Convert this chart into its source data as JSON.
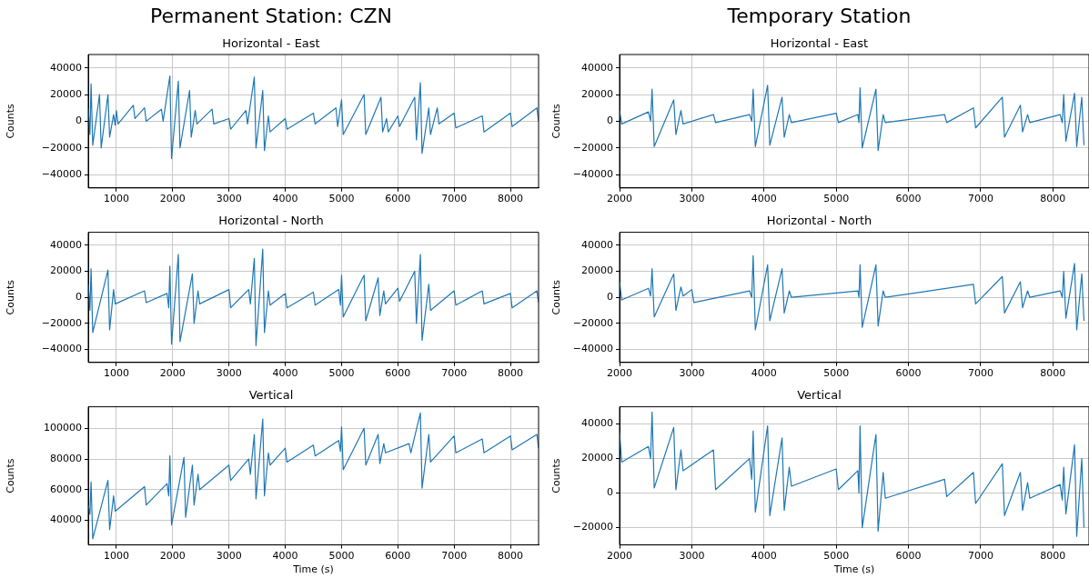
{
  "chart_data": [
    {
      "type": "line",
      "title": "Permanent Station: CZN",
      "subtitle": "Horizontal - East",
      "ylabel": "Counts",
      "xlim": [
        500,
        8500
      ],
      "xticks": [
        1000,
        2000,
        3000,
        4000,
        5000,
        6000,
        7000,
        8000
      ],
      "ylim": [
        -50000,
        50000
      ],
      "yticks": [
        -40000,
        -20000,
        0,
        20000,
        40000
      ],
      "grid": true,
      "series": [
        {
          "color": "#1f77b4",
          "x": [
            500,
            530,
            550,
            580,
            700,
            730,
            850,
            880,
            950,
            980,
            1000,
            1030,
            1300,
            1330,
            1500,
            1530,
            1800,
            1830,
            1950,
            1980,
            2100,
            2130,
            2300,
            2330,
            2400,
            2430,
            2700,
            2730,
            3000,
            3030,
            3300,
            3330,
            3450,
            3480,
            3600,
            3630,
            3700,
            3730,
            4000,
            4030,
            4500,
            4530,
            4900,
            4930,
            5000,
            5030,
            5400,
            5430,
            5700,
            5730,
            5800,
            5830,
            6000,
            6030,
            6300,
            6330,
            6400,
            6430,
            6550,
            6580,
            6700,
            6730,
            7000,
            7030,
            7500,
            7530,
            8000,
            8030,
            8470,
            8500
          ],
          "values": [
            10000,
            -10000,
            28000,
            -18000,
            20000,
            -20000,
            20000,
            -12000,
            5000,
            -3000,
            8000,
            -2000,
            12000,
            2000,
            10000,
            0,
            9000,
            0,
            34000,
            -28000,
            30000,
            -20000,
            23000,
            -12000,
            8000,
            -2000,
            9000,
            -2000,
            2000,
            -6000,
            8000,
            -2000,
            33000,
            -20000,
            23000,
            -22000,
            4000,
            -8000,
            2000,
            -6000,
            6000,
            -2000,
            10000,
            -4000,
            16000,
            -10000,
            20000,
            -10000,
            18000,
            -8000,
            2000,
            -8000,
            4000,
            -4000,
            18000,
            -14000,
            29000,
            -24000,
            10000,
            -10000,
            10000,
            -2000,
            6000,
            -5000,
            4000,
            -8000,
            6000,
            -4000,
            10000,
            0
          ]
        }
      ]
    },
    {
      "type": "line",
      "title": "Temporary Station",
      "subtitle": "Horizontal - East",
      "ylabel": "Counts",
      "xlim": [
        2000,
        8500
      ],
      "xticks": [
        2000,
        3000,
        4000,
        5000,
        6000,
        7000,
        8000
      ],
      "ylim": [
        -50000,
        50000
      ],
      "yticks": [
        -40000,
        -20000,
        0,
        20000,
        40000
      ],
      "grid": true,
      "series": [
        {
          "color": "#1f77b4",
          "x": [
            2000,
            2030,
            2400,
            2430,
            2450,
            2480,
            2750,
            2780,
            2850,
            2880,
            3300,
            3330,
            3800,
            3830,
            3850,
            3880,
            4050,
            4080,
            4250,
            4280,
            4350,
            4380,
            5000,
            5030,
            5300,
            5315,
            5330,
            5360,
            5550,
            5580,
            5650,
            5680,
            6500,
            6530,
            6900,
            6930,
            7300,
            7330,
            7550,
            7580,
            7650,
            7680,
            8100,
            8130,
            8150,
            8180,
            8300,
            8330,
            8400,
            8430
          ],
          "values": [
            8000,
            -2000,
            7000,
            0,
            24000,
            -19000,
            16000,
            -10000,
            8000,
            -2000,
            5000,
            -1000,
            5000,
            0,
            24000,
            -19000,
            27000,
            -18000,
            18000,
            -12000,
            5000,
            -1000,
            6000,
            -1000,
            5000,
            -1000,
            25000,
            -20000,
            24000,
            -22000,
            5000,
            -1000,
            5000,
            -1000,
            10000,
            -5000,
            18000,
            -12000,
            12000,
            -8000,
            5000,
            -1000,
            5000,
            -1000,
            20000,
            -15000,
            21000,
            -19000,
            18000,
            -18000
          ]
        }
      ]
    },
    {
      "type": "line",
      "title": "Horizontal - North",
      "ylabel": "Counts",
      "xlim": [
        500,
        8500
      ],
      "xticks": [
        1000,
        2000,
        3000,
        4000,
        5000,
        6000,
        7000,
        8000
      ],
      "ylim": [
        -50000,
        50000
      ],
      "yticks": [
        -40000,
        -20000,
        0,
        20000,
        40000
      ],
      "grid": true,
      "series": [
        {
          "color": "#1f77b4",
          "x": [
            500,
            530,
            550,
            580,
            850,
            880,
            950,
            980,
            1500,
            1530,
            1900,
            1930,
            1950,
            1980,
            2100,
            2130,
            2350,
            2380,
            2450,
            2480,
            3000,
            3030,
            3350,
            3380,
            3450,
            3480,
            3600,
            3630,
            3700,
            3730,
            4000,
            4030,
            4500,
            4530,
            4950,
            4980,
            5000,
            5030,
            5400,
            5430,
            5650,
            5680,
            5750,
            5780,
            6000,
            6030,
            6300,
            6330,
            6400,
            6430,
            6550,
            6580,
            7000,
            7030,
            7500,
            7530,
            8000,
            8030,
            8470,
            8500
          ],
          "values": [
            10000,
            -10000,
            22000,
            -27000,
            21000,
            -25000,
            6000,
            -5000,
            5000,
            -4000,
            3000,
            -8000,
            24000,
            -36000,
            33000,
            -34000,
            18000,
            -20000,
            5000,
            -5000,
            6000,
            -8000,
            6000,
            -5000,
            30000,
            -37000,
            37000,
            -27000,
            5000,
            -6000,
            3000,
            -8000,
            4000,
            -6000,
            6000,
            -6000,
            17000,
            -15000,
            17000,
            -18000,
            15000,
            -14000,
            5000,
            -5000,
            7000,
            -3000,
            20000,
            -20000,
            33000,
            -33000,
            10000,
            -10000,
            5000,
            -6000,
            5000,
            -5000,
            3000,
            -8000,
            5000,
            -4000
          ]
        }
      ]
    },
    {
      "type": "line",
      "title": "Horizontal - North",
      "ylabel": "Counts",
      "xlim": [
        2000,
        8500
      ],
      "xticks": [
        2000,
        3000,
        4000,
        5000,
        6000,
        7000,
        8000
      ],
      "ylim": [
        -50000,
        50000
      ],
      "yticks": [
        -40000,
        -20000,
        0,
        20000,
        40000
      ],
      "grid": true,
      "series": [
        {
          "color": "#1f77b4",
          "x": [
            2000,
            2030,
            2400,
            2430,
            2450,
            2480,
            2750,
            2780,
            2850,
            2880,
            3000,
            3030,
            3800,
            3830,
            3850,
            3880,
            4050,
            4080,
            4250,
            4280,
            4350,
            4380,
            5300,
            5315,
            5330,
            5360,
            5550,
            5580,
            5650,
            5680,
            6900,
            6930,
            7300,
            7330,
            7550,
            7580,
            7650,
            7680,
            8100,
            8130,
            8150,
            8180,
            8300,
            8330,
            8400,
            8430
          ],
          "values": [
            12000,
            -2000,
            7000,
            1000,
            22000,
            -15000,
            18000,
            -10000,
            8000,
            1000,
            6000,
            -4000,
            5000,
            0,
            32000,
            -25000,
            25000,
            -18000,
            22000,
            -12000,
            5000,
            0,
            5000,
            0,
            25000,
            -23000,
            25000,
            -22000,
            5000,
            0,
            10000,
            -5000,
            16000,
            -12000,
            12000,
            -8000,
            5000,
            0,
            5000,
            0,
            20000,
            -16000,
            26000,
            -25000,
            18000,
            -18000
          ]
        }
      ]
    },
    {
      "type": "line",
      "title": "Vertical",
      "xlabel": "Time (s)",
      "ylabel": "Counts",
      "xlim": [
        500,
        8500
      ],
      "xticks": [
        1000,
        2000,
        3000,
        4000,
        5000,
        6000,
        7000,
        8000
      ],
      "ylim": [
        24000,
        114000
      ],
      "yticks": [
        40000,
        60000,
        80000,
        100000
      ],
      "grid": true,
      "series": [
        {
          "color": "#1f77b4",
          "x": [
            500,
            530,
            550,
            580,
            850,
            880,
            950,
            980,
            1500,
            1530,
            1900,
            1930,
            1950,
            1980,
            2200,
            2230,
            2350,
            2380,
            2450,
            2480,
            3000,
            3030,
            3350,
            3380,
            3450,
            3480,
            3600,
            3630,
            3700,
            3730,
            4000,
            4030,
            4500,
            4530,
            4950,
            4980,
            5000,
            5030,
            5400,
            5430,
            5650,
            5680,
            5750,
            5780,
            6200,
            6230,
            6400,
            6430,
            6550,
            6580,
            7000,
            7030,
            7500,
            7530,
            8000,
            8030,
            8470,
            8500
          ],
          "values": [
            50000,
            44000,
            65000,
            28000,
            66000,
            34000,
            56000,
            46000,
            62000,
            50000,
            64000,
            56000,
            82000,
            37000,
            81000,
            42000,
            76000,
            50000,
            70000,
            60000,
            76000,
            66000,
            80000,
            70000,
            96000,
            54000,
            106000,
            56000,
            84000,
            76000,
            87000,
            78000,
            89000,
            82000,
            92000,
            85000,
            101000,
            73000,
            100000,
            76000,
            96000,
            77000,
            90000,
            84000,
            90000,
            84000,
            110000,
            61000,
            96000,
            78000,
            95000,
            84000,
            93000,
            84000,
            95000,
            86000,
            96000,
            87000
          ]
        }
      ]
    },
    {
      "type": "line",
      "title": "Vertical",
      "xlabel": "Time (s)",
      "ylabel": "Counts",
      "xlim": [
        2000,
        8500
      ],
      "xticks": [
        2000,
        3000,
        4000,
        5000,
        6000,
        7000,
        8000
      ],
      "ylim": [
        -30000,
        50000
      ],
      "yticks": [
        -20000,
        0,
        20000,
        40000
      ],
      "grid": true,
      "series": [
        {
          "color": "#1f77b4",
          "x": [
            2000,
            2030,
            2400,
            2430,
            2450,
            2480,
            2750,
            2780,
            2850,
            2880,
            3300,
            3330,
            3800,
            3830,
            3850,
            3880,
            4050,
            4080,
            4250,
            4280,
            4350,
            4380,
            5000,
            5030,
            5300,
            5315,
            5330,
            5360,
            5550,
            5580,
            5650,
            5680,
            6500,
            6530,
            6900,
            6930,
            7300,
            7330,
            7550,
            7580,
            7650,
            7680,
            8100,
            8130,
            8150,
            8180,
            8300,
            8330,
            8400,
            8430
          ],
          "values": [
            35000,
            18000,
            27000,
            20000,
            47000,
            3000,
            38000,
            2000,
            25000,
            13000,
            25000,
            2000,
            20000,
            8000,
            36000,
            -11000,
            39000,
            -13000,
            32000,
            -10000,
            15000,
            4000,
            14000,
            2000,
            13000,
            0,
            39000,
            -20000,
            34000,
            -22000,
            12000,
            -3000,
            8000,
            -2000,
            12000,
            -6000,
            17000,
            -13000,
            12000,
            -10000,
            6000,
            -3000,
            5000,
            -4000,
            15000,
            -12000,
            28000,
            -25000,
            20000,
            -20000
          ]
        }
      ]
    }
  ]
}
